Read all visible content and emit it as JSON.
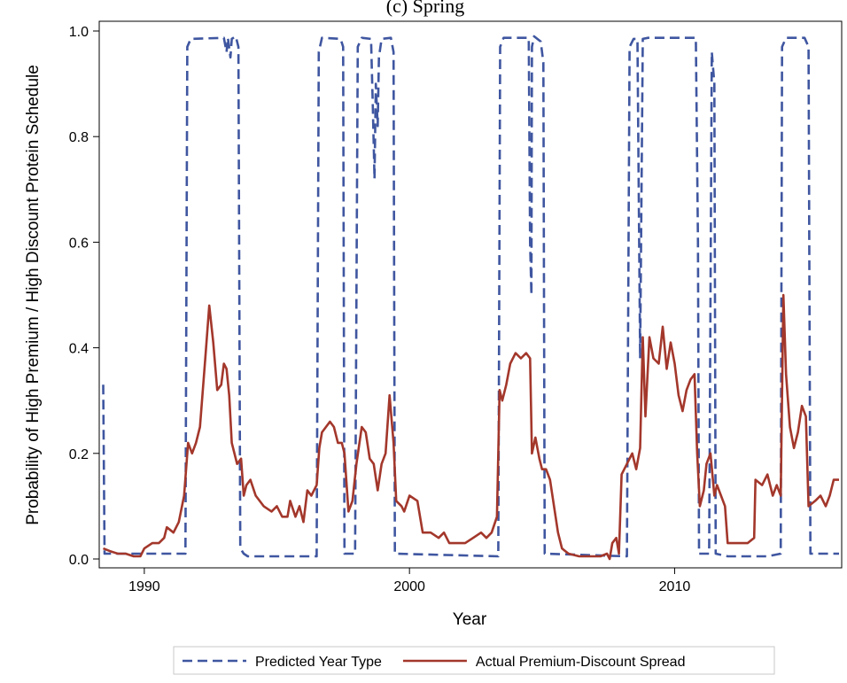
{
  "chart_data": {
    "type": "line",
    "title": "(c) Spring",
    "xlabel": "Year",
    "ylabel": "Probability of High Premium / High Discount Protein Schedule",
    "xlim": [
      1988.3,
      2016.3
    ],
    "ylim": [
      0.0,
      1.0
    ],
    "x_ticks": [
      1990,
      2000,
      2010
    ],
    "y_ticks": [
      "0.0",
      "0.2",
      "0.4",
      "0.6",
      "0.8",
      "1.0"
    ],
    "grid": false,
    "legend_position": "bottom",
    "series": [
      {
        "name": "Predicted Year Type",
        "style": "dashed",
        "color": "#3f56a0",
        "points": [
          [
            1988.45,
            0.33
          ],
          [
            1988.5,
            0.01
          ],
          [
            1991.55,
            0.01
          ],
          [
            1991.62,
            0.97
          ],
          [
            1991.75,
            0.985
          ],
          [
            1993.0,
            0.987
          ],
          [
            1993.1,
            0.96
          ],
          [
            1993.15,
            0.987
          ],
          [
            1993.25,
            0.95
          ],
          [
            1993.3,
            0.985
          ],
          [
            1993.45,
            0.99
          ],
          [
            1993.55,
            0.97
          ],
          [
            1993.62,
            0.02
          ],
          [
            1993.75,
            0.01
          ],
          [
            1993.9,
            0.005
          ],
          [
            1996.5,
            0.005
          ],
          [
            1996.58,
            0.96
          ],
          [
            1996.7,
            0.987
          ],
          [
            1997.4,
            0.985
          ],
          [
            1997.5,
            0.97
          ],
          [
            1997.55,
            0.01
          ],
          [
            1997.95,
            0.01
          ],
          [
            1998.05,
            0.97
          ],
          [
            1998.2,
            0.987
          ],
          [
            1998.55,
            0.985
          ],
          [
            1998.62,
            0.85
          ],
          [
            1998.68,
            0.72
          ],
          [
            1998.73,
            0.9
          ],
          [
            1998.8,
            0.82
          ],
          [
            1998.85,
            0.95
          ],
          [
            1998.95,
            0.985
          ],
          [
            1999.3,
            0.987
          ],
          [
            1999.4,
            0.96
          ],
          [
            1999.45,
            0.01
          ],
          [
            2003.35,
            0.005
          ],
          [
            2003.42,
            0.97
          ],
          [
            2003.55,
            0.987
          ],
          [
            2004.5,
            0.987
          ],
          [
            2004.55,
            0.6
          ],
          [
            2004.6,
            0.5
          ],
          [
            2004.62,
            0.97
          ],
          [
            2004.7,
            0.99
          ],
          [
            2004.95,
            0.98
          ],
          [
            2005.05,
            0.94
          ],
          [
            2005.1,
            0.01
          ],
          [
            2008.2,
            0.005
          ],
          [
            2008.3,
            0.97
          ],
          [
            2008.45,
            0.985
          ],
          [
            2008.6,
            0.985
          ],
          [
            2008.7,
            0.38
          ],
          [
            2008.8,
            0.985
          ],
          [
            2009.0,
            0.987
          ],
          [
            2010.8,
            0.987
          ],
          [
            2010.88,
            0.6
          ],
          [
            2010.92,
            0.01
          ],
          [
            2011.3,
            0.01
          ],
          [
            2011.4,
            0.96
          ],
          [
            2011.5,
            0.9
          ],
          [
            2011.55,
            0.01
          ],
          [
            2012.0,
            0.005
          ],
          [
            2013.5,
            0.005
          ],
          [
            2014.0,
            0.01
          ],
          [
            2014.05,
            0.97
          ],
          [
            2014.2,
            0.987
          ],
          [
            2014.9,
            0.987
          ],
          [
            2015.05,
            0.97
          ],
          [
            2015.12,
            0.01
          ],
          [
            2016.2,
            0.01
          ]
        ]
      },
      {
        "name": "Actual Premium-Discount Spread",
        "style": "solid",
        "color": "#a3372b",
        "points": [
          [
            1988.45,
            0.02
          ],
          [
            1988.7,
            0.015
          ],
          [
            1989.0,
            0.01
          ],
          [
            1989.3,
            0.01
          ],
          [
            1989.6,
            0.005
          ],
          [
            1989.85,
            0.005
          ],
          [
            1990.0,
            0.02
          ],
          [
            1990.3,
            0.03
          ],
          [
            1990.55,
            0.03
          ],
          [
            1990.75,
            0.04
          ],
          [
            1990.85,
            0.06
          ],
          [
            1991.1,
            0.05
          ],
          [
            1991.3,
            0.07
          ],
          [
            1991.5,
            0.12
          ],
          [
            1991.65,
            0.22
          ],
          [
            1991.8,
            0.2
          ],
          [
            1991.95,
            0.22
          ],
          [
            1992.1,
            0.25
          ],
          [
            1992.3,
            0.38
          ],
          [
            1992.45,
            0.48
          ],
          [
            1992.6,
            0.41
          ],
          [
            1992.75,
            0.32
          ],
          [
            1992.9,
            0.33
          ],
          [
            1993.0,
            0.37
          ],
          [
            1993.1,
            0.36
          ],
          [
            1993.2,
            0.31
          ],
          [
            1993.3,
            0.22
          ],
          [
            1993.5,
            0.18
          ],
          [
            1993.65,
            0.19
          ],
          [
            1993.75,
            0.12
          ],
          [
            1993.85,
            0.14
          ],
          [
            1994.0,
            0.15
          ],
          [
            1994.2,
            0.12
          ],
          [
            1994.5,
            0.1
          ],
          [
            1994.8,
            0.09
          ],
          [
            1995.0,
            0.1
          ],
          [
            1995.2,
            0.08
          ],
          [
            1995.4,
            0.08
          ],
          [
            1995.5,
            0.11
          ],
          [
            1995.7,
            0.08
          ],
          [
            1995.85,
            0.1
          ],
          [
            1996.0,
            0.07
          ],
          [
            1996.15,
            0.13
          ],
          [
            1996.3,
            0.12
          ],
          [
            1996.5,
            0.14
          ],
          [
            1996.6,
            0.21
          ],
          [
            1996.7,
            0.24
          ],
          [
            1996.85,
            0.25
          ],
          [
            1997.0,
            0.26
          ],
          [
            1997.15,
            0.25
          ],
          [
            1997.3,
            0.22
          ],
          [
            1997.45,
            0.22
          ],
          [
            1997.55,
            0.2
          ],
          [
            1997.7,
            0.09
          ],
          [
            1997.85,
            0.11
          ],
          [
            1998.0,
            0.18
          ],
          [
            1998.2,
            0.25
          ],
          [
            1998.35,
            0.24
          ],
          [
            1998.5,
            0.19
          ],
          [
            1998.65,
            0.18
          ],
          [
            1998.8,
            0.13
          ],
          [
            1998.95,
            0.18
          ],
          [
            1999.1,
            0.2
          ],
          [
            1999.25,
            0.31
          ],
          [
            1999.4,
            0.22
          ],
          [
            1999.5,
            0.11
          ],
          [
            1999.7,
            0.1
          ],
          [
            1999.8,
            0.09
          ],
          [
            2000.0,
            0.12
          ],
          [
            2000.3,
            0.11
          ],
          [
            2000.5,
            0.05
          ],
          [
            2000.8,
            0.05
          ],
          [
            2001.1,
            0.04
          ],
          [
            2001.3,
            0.05
          ],
          [
            2001.5,
            0.03
          ],
          [
            2001.8,
            0.03
          ],
          [
            2002.1,
            0.03
          ],
          [
            2002.4,
            0.04
          ],
          [
            2002.7,
            0.05
          ],
          [
            2002.9,
            0.04
          ],
          [
            2003.1,
            0.05
          ],
          [
            2003.3,
            0.08
          ],
          [
            2003.4,
            0.32
          ],
          [
            2003.5,
            0.3
          ],
          [
            2003.65,
            0.33
          ],
          [
            2003.8,
            0.37
          ],
          [
            2004.0,
            0.39
          ],
          [
            2004.2,
            0.38
          ],
          [
            2004.4,
            0.39
          ],
          [
            2004.55,
            0.38
          ],
          [
            2004.62,
            0.2
          ],
          [
            2004.75,
            0.23
          ],
          [
            2004.9,
            0.19
          ],
          [
            2005.0,
            0.17
          ],
          [
            2005.15,
            0.17
          ],
          [
            2005.3,
            0.15
          ],
          [
            2005.45,
            0.1
          ],
          [
            2005.6,
            0.05
          ],
          [
            2005.75,
            0.02
          ],
          [
            2006.0,
            0.01
          ],
          [
            2006.4,
            0.005
          ],
          [
            2006.8,
            0.005
          ],
          [
            2007.2,
            0.005
          ],
          [
            2007.45,
            0.01
          ],
          [
            2007.55,
            0.0
          ],
          [
            2007.65,
            0.03
          ],
          [
            2007.8,
            0.04
          ],
          [
            2007.9,
            0.01
          ],
          [
            2008.0,
            0.16
          ],
          [
            2008.2,
            0.18
          ],
          [
            2008.4,
            0.2
          ],
          [
            2008.55,
            0.17
          ],
          [
            2008.7,
            0.21
          ],
          [
            2008.8,
            0.42
          ],
          [
            2008.9,
            0.27
          ],
          [
            2009.05,
            0.42
          ],
          [
            2009.2,
            0.38
          ],
          [
            2009.4,
            0.37
          ],
          [
            2009.55,
            0.44
          ],
          [
            2009.7,
            0.36
          ],
          [
            2009.85,
            0.41
          ],
          [
            2010.0,
            0.37
          ],
          [
            2010.15,
            0.31
          ],
          [
            2010.3,
            0.28
          ],
          [
            2010.45,
            0.32
          ],
          [
            2010.6,
            0.34
          ],
          [
            2010.75,
            0.35
          ],
          [
            2010.85,
            0.2
          ],
          [
            2010.95,
            0.1
          ],
          [
            2011.1,
            0.13
          ],
          [
            2011.2,
            0.18
          ],
          [
            2011.35,
            0.2
          ],
          [
            2011.5,
            0.12
          ],
          [
            2011.6,
            0.14
          ],
          [
            2011.75,
            0.12
          ],
          [
            2011.9,
            0.1
          ],
          [
            2012.0,
            0.03
          ],
          [
            2012.4,
            0.03
          ],
          [
            2012.75,
            0.03
          ],
          [
            2013.0,
            0.04
          ],
          [
            2013.05,
            0.15
          ],
          [
            2013.3,
            0.14
          ],
          [
            2013.5,
            0.16
          ],
          [
            2013.7,
            0.12
          ],
          [
            2013.85,
            0.14
          ],
          [
            2014.0,
            0.12
          ],
          [
            2014.1,
            0.5
          ],
          [
            2014.2,
            0.35
          ],
          [
            2014.35,
            0.25
          ],
          [
            2014.5,
            0.21
          ],
          [
            2014.65,
            0.24
          ],
          [
            2014.8,
            0.29
          ],
          [
            2014.95,
            0.27
          ],
          [
            2015.05,
            0.1
          ],
          [
            2015.3,
            0.11
          ],
          [
            2015.5,
            0.12
          ],
          [
            2015.7,
            0.1
          ],
          [
            2015.85,
            0.12
          ],
          [
            2016.0,
            0.15
          ],
          [
            2016.2,
            0.15
          ]
        ]
      }
    ]
  }
}
